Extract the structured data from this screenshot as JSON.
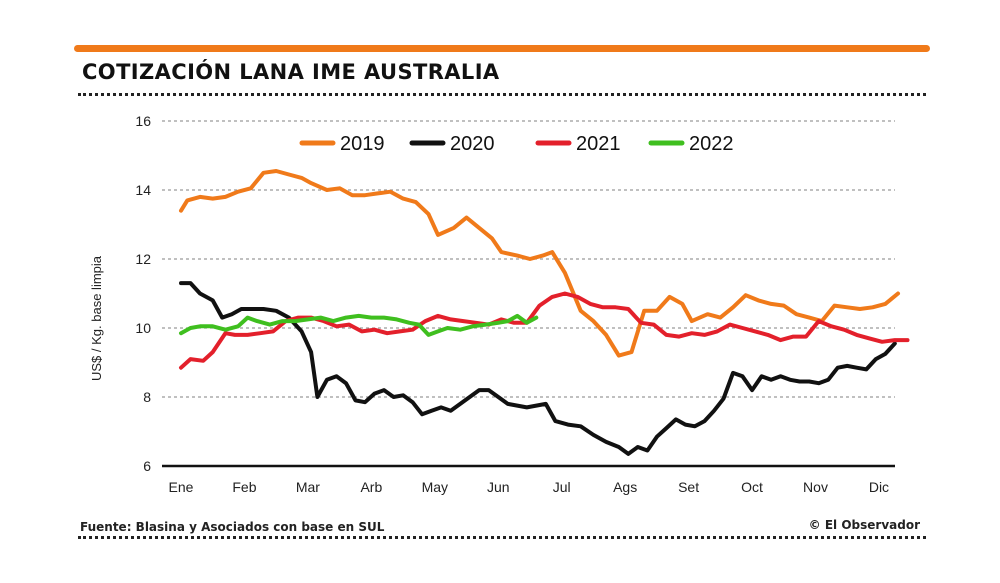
{
  "header": {
    "title": "COTIZACIÓN LANA IME AUSTRALIA"
  },
  "footer": {
    "source": "Fuente: Blasina y Asociados con base en SUL",
    "credit": "© El Observador"
  },
  "colors": {
    "accent": "#f07a1a"
  },
  "chart_data": {
    "type": "line",
    "title": "COTIZACIÓN LANA IME AUSTRALIA",
    "xlabel": "",
    "ylabel": "US$ / Kg. base limpia",
    "ylim": [
      6,
      16
    ],
    "yticks": [
      6,
      8,
      10,
      12,
      14,
      16
    ],
    "categories": [
      "Ene",
      "Feb",
      "Mar",
      "Arb",
      "May",
      "Jun",
      "Jul",
      "Ags",
      "Set",
      "Oct",
      "Nov",
      "Dic"
    ],
    "grid": true,
    "legend_position": "top",
    "series": [
      {
        "name": "2019",
        "color": "#f07a1a",
        "x": [
          0,
          0.1,
          0.3,
          0.5,
          0.7,
          0.9,
          1.1,
          1.3,
          1.5,
          1.7,
          1.9,
          2.05,
          2.3,
          2.5,
          2.7,
          2.9,
          3.1,
          3.3,
          3.5,
          3.7,
          3.9,
          4.05,
          4.3,
          4.5,
          4.7,
          4.9,
          5.05,
          5.3,
          5.5,
          5.7,
          5.85,
          6.05,
          6.3,
          6.5,
          6.7,
          6.9,
          7.1,
          7.3,
          7.5,
          7.7,
          7.9,
          8.05,
          8.3,
          8.5,
          8.7,
          8.9,
          9.1,
          9.3,
          9.5,
          9.7,
          9.9,
          10.1,
          10.3,
          10.5,
          10.7,
          10.9,
          11.1,
          11.3
        ],
        "values": [
          13.4,
          13.7,
          13.8,
          13.75,
          13.8,
          13.95,
          14.05,
          14.5,
          14.55,
          14.45,
          14.35,
          14.2,
          14.0,
          14.05,
          13.85,
          13.85,
          13.9,
          13.95,
          13.75,
          13.65,
          13.3,
          12.7,
          12.9,
          13.2,
          12.9,
          12.6,
          12.2,
          12.1,
          12.0,
          12.1,
          12.2,
          11.6,
          10.5,
          10.2,
          9.8,
          9.2,
          9.3,
          10.5,
          10.5,
          10.9,
          10.7,
          10.2,
          10.4,
          10.3,
          10.6,
          10.95,
          10.8,
          10.7,
          10.65,
          10.4,
          10.3,
          10.2,
          10.65,
          10.6,
          10.55,
          10.6,
          10.7,
          11.0
        ]
      },
      {
        "name": "2020",
        "color": "#111111",
        "x": [
          0,
          0.15,
          0.3,
          0.5,
          0.65,
          0.8,
          0.95,
          1.1,
          1.3,
          1.5,
          1.7,
          1.9,
          2.05,
          2.15,
          2.3,
          2.45,
          2.6,
          2.75,
          2.9,
          3.05,
          3.2,
          3.35,
          3.5,
          3.65,
          3.8,
          3.95,
          4.1,
          4.25,
          4.4,
          4.55,
          4.7,
          4.85,
          5.0,
          5.15,
          5.3,
          5.45,
          5.6,
          5.75,
          5.9,
          6.1,
          6.3,
          6.5,
          6.7,
          6.9,
          7.05,
          7.2,
          7.35,
          7.5,
          7.65,
          7.8,
          7.95,
          8.1,
          8.25,
          8.4,
          8.55,
          8.7,
          8.85,
          9.0,
          9.15,
          9.3,
          9.45,
          9.6,
          9.75,
          9.9,
          10.05,
          10.2,
          10.35,
          10.5,
          10.65,
          10.8,
          10.95,
          11.1,
          11.25
        ],
        "values": [
          11.3,
          11.3,
          11.0,
          10.8,
          10.3,
          10.4,
          10.55,
          10.55,
          10.55,
          10.5,
          10.3,
          9.9,
          9.3,
          8.0,
          8.5,
          8.6,
          8.4,
          7.9,
          7.85,
          8.1,
          8.2,
          8.0,
          8.05,
          7.85,
          7.5,
          7.6,
          7.7,
          7.6,
          7.8,
          8.0,
          8.2,
          8.2,
          8.0,
          7.8,
          7.75,
          7.7,
          7.75,
          7.8,
          7.3,
          7.2,
          7.15,
          6.9,
          6.7,
          6.55,
          6.35,
          6.55,
          6.45,
          6.85,
          7.1,
          7.35,
          7.2,
          7.15,
          7.3,
          7.6,
          7.95,
          8.7,
          8.6,
          8.2,
          8.6,
          8.5,
          8.6,
          8.5,
          8.45,
          8.45,
          8.4,
          8.5,
          8.85,
          8.9,
          8.85,
          8.8,
          9.1,
          9.25,
          9.55
        ]
      },
      {
        "name": "2021",
        "color": "#e3202b",
        "x": [
          0,
          0.15,
          0.35,
          0.5,
          0.7,
          0.85,
          1.05,
          1.25,
          1.45,
          1.65,
          1.85,
          2.05,
          2.25,
          2.45,
          2.65,
          2.85,
          3.05,
          3.25,
          3.45,
          3.65,
          3.85,
          4.05,
          4.25,
          4.45,
          4.65,
          4.85,
          5.05,
          5.25,
          5.45,
          5.65,
          5.85,
          6.05,
          6.25,
          6.45,
          6.65,
          6.85,
          7.05,
          7.25,
          7.45,
          7.65,
          7.85,
          8.05,
          8.25,
          8.45,
          8.65,
          8.85,
          9.05,
          9.25,
          9.45,
          9.65,
          9.85,
          10.05,
          10.25,
          10.45,
          10.65,
          10.85,
          11.05,
          11.25,
          11.45
        ],
        "values": [
          8.85,
          9.1,
          9.05,
          9.3,
          9.85,
          9.8,
          9.8,
          9.85,
          9.9,
          10.2,
          10.3,
          10.3,
          10.2,
          10.05,
          10.1,
          9.9,
          9.95,
          9.85,
          9.9,
          9.95,
          10.2,
          10.35,
          10.25,
          10.2,
          10.15,
          10.1,
          10.25,
          10.15,
          10.15,
          10.65,
          10.9,
          11.0,
          10.9,
          10.7,
          10.6,
          10.6,
          10.55,
          10.15,
          10.1,
          9.8,
          9.75,
          9.85,
          9.8,
          9.9,
          10.1,
          10.0,
          9.9,
          9.8,
          9.65,
          9.75,
          9.75,
          10.2,
          10.05,
          9.95,
          9.8,
          9.7,
          9.6,
          9.65,
          9.65
        ]
      },
      {
        "name": "2022",
        "color": "#3fbf1f",
        "x": [
          0,
          0.15,
          0.3,
          0.5,
          0.7,
          0.9,
          1.05,
          1.2,
          1.4,
          1.6,
          1.8,
          2.0,
          2.2,
          2.4,
          2.6,
          2.8,
          3.0,
          3.2,
          3.4,
          3.6,
          3.75,
          3.9,
          4.05,
          4.2,
          4.4,
          4.6,
          4.8,
          5.0,
          5.15,
          5.3,
          5.45,
          5.6
        ],
        "values": [
          9.85,
          10.0,
          10.05,
          10.05,
          9.95,
          10.05,
          10.3,
          10.2,
          10.1,
          10.2,
          10.2,
          10.25,
          10.3,
          10.2,
          10.3,
          10.35,
          10.3,
          10.3,
          10.25,
          10.15,
          10.1,
          9.8,
          9.9,
          10.0,
          9.95,
          10.05,
          10.1,
          10.15,
          10.2,
          10.35,
          10.15,
          10.3
        ]
      }
    ]
  }
}
